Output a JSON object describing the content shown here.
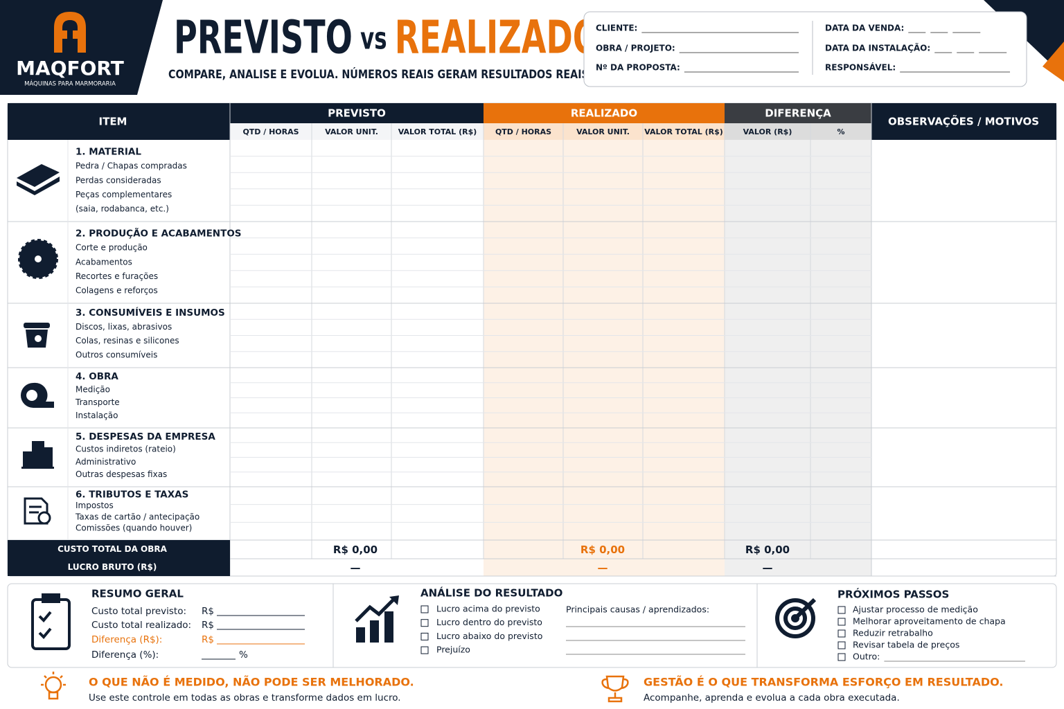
{
  "header": {
    "logo_name": "MAQFORT",
    "logo_tagline": "MÁQUINAS PARA MARMORARIA",
    "title_part1": "PREVISTO",
    "title_vs": "vs",
    "title_part2": "REALIZADO",
    "subtitle": "COMPARE, ANALISE E EVOLUA. NÚMEROS REAIS GERAM RESULTADOS REAIS."
  },
  "info": {
    "left": [
      "CLIENTE:",
      "OBRA / PROJETO:",
      "Nº DA PROPOSTA:"
    ],
    "right": [
      "DATA DA VENDA:",
      "DATA DA INSTALAÇÃO:",
      "RESPONSÁVEL:"
    ]
  },
  "table": {
    "item_header": "ITEM",
    "groups": [
      {
        "title": "PREVISTO",
        "columns": [
          "QTD / HORAS",
          "VALOR UNIT.",
          "VALOR TOTAL (R$)"
        ]
      },
      {
        "title": "REALIZADO",
        "columns": [
          "QTD / HORAS",
          "VALOR UNIT.",
          "VALOR TOTAL (R$)"
        ]
      },
      {
        "title": "DIFERENÇA",
        "columns": [
          "VALOR (R$)",
          "%"
        ]
      }
    ],
    "obs_header": "OBSERVAÇÕES / MOTIVOS",
    "sections": [
      {
        "title": "1. MATERIAL",
        "items": [
          "Pedra / Chapas compradas",
          "Perdas consideradas",
          "Peças complementares",
          "(saia, rodabanca, etc.)"
        ]
      },
      {
        "title": "2. PRODUÇÃO E ACABAMENTOS",
        "items": [
          "Corte e produção",
          "Acabamentos",
          "Recortes e furações",
          "Colagens e reforços"
        ]
      },
      {
        "title": "3. CONSUMÍVEIS E INSUMOS",
        "items": [
          "Discos, lixas, abrasivos",
          "Colas, resinas e silicones",
          "Outros consumíveis"
        ]
      },
      {
        "title": "4. OBRA",
        "items": [
          "Medição",
          "Transporte",
          "Instalação"
        ]
      },
      {
        "title": "5. DESPESAS DA EMPRESA",
        "items": [
          "Custos indiretos (rateio)",
          "Administrativo",
          "Outras despesas fixas"
        ]
      },
      {
        "title": "6. TRIBUTOS E TAXAS",
        "items": [
          "Impostos",
          "Taxas de cartão / antecipação",
          "Comissões (quando houver)"
        ]
      }
    ],
    "totals": [
      {
        "label": "CUSTO TOTAL DA OBRA",
        "values": [
          "R$ 0,00",
          "R$ 0,00",
          "R$ 0,00"
        ]
      },
      {
        "label": "LUCRO BRUTO (R$)",
        "values": [
          "—",
          "—",
          "—"
        ]
      }
    ]
  },
  "summary": {
    "title": "RESUMO GERAL",
    "rows": [
      {
        "label": "Custo total previsto:",
        "prefix": "R$"
      },
      {
        "label": "Custo total realizado:",
        "prefix": "R$"
      },
      {
        "label": "Diferença (R$):",
        "prefix": "R$"
      },
      {
        "label": "Diferença (%):",
        "suffix": "%"
      }
    ]
  },
  "analysis": {
    "title": "ANÁLISE DO RESULTADO",
    "options": [
      "Lucro acima do previsto",
      "Lucro dentro do previsto",
      "Lucro abaixo do previsto",
      "Prejuízo"
    ],
    "notes_label": "Principais causas / aprendizados:"
  },
  "next_steps": {
    "title": "PRÓXIMOS PASSOS",
    "options": [
      "Ajustar processo de medição",
      "Melhorar aproveitamento de chapa",
      "Reduzir retrabalho",
      "Revisar tabela de preços",
      "Outro:"
    ]
  },
  "footer": [
    {
      "title": "O QUE NÃO É MEDIDO, NÃO PODE SER MELHORADO.",
      "text": "Use este controle em todas as obras e transforme dados em lucro."
    },
    {
      "title": "GESTÃO É O QUE TRANSFORMA ESFORÇO EM RESULTADO.",
      "text": "Acompanhe, aprenda e evolua a cada obra executada."
    }
  ]
}
